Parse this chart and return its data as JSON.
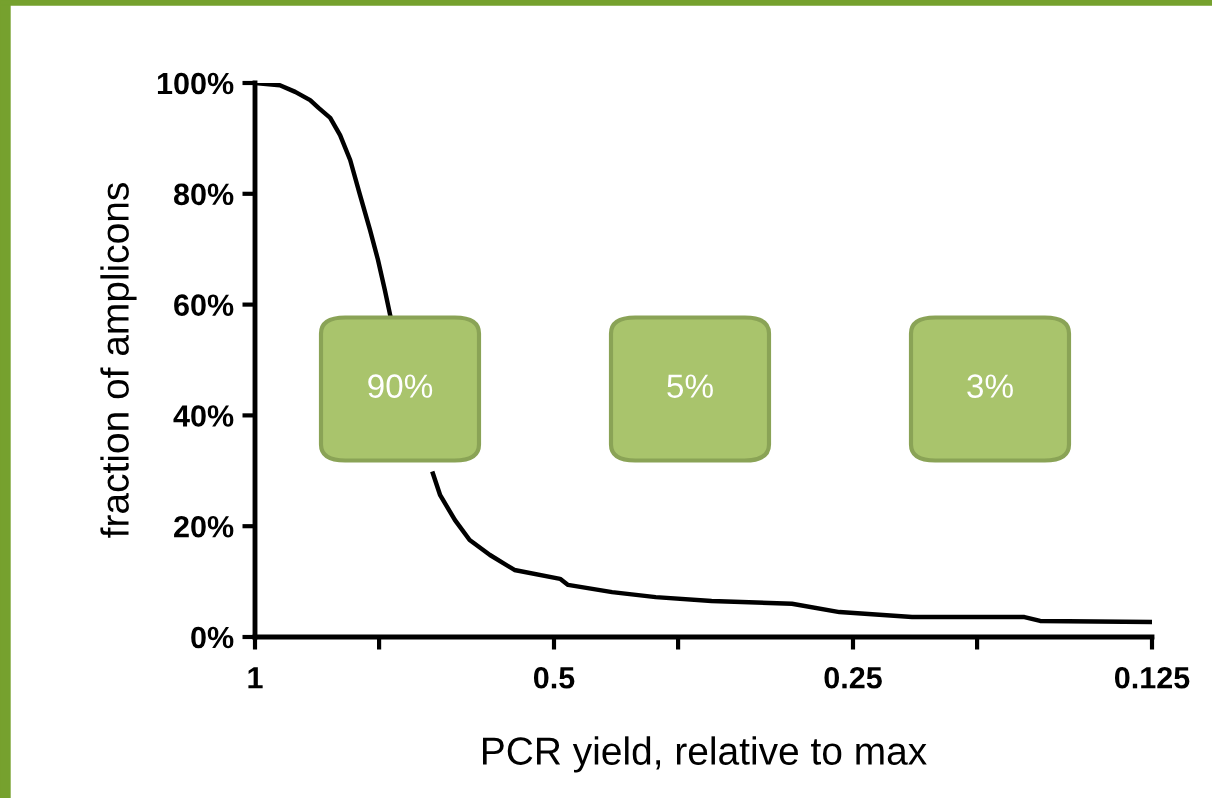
{
  "chart_data": {
    "type": "line",
    "xlabel": "PCR yield, relative to max",
    "ylabel": "fraction of amplicons",
    "x": [
      1,
      0.944,
      0.911,
      0.88,
      0.863,
      0.84,
      0.821,
      0.802,
      0.784,
      0.766,
      0.752,
      0.74,
      0.731,
      0.7,
      0.662,
      0.651,
      0.629,
      0.608,
      0.58,
      0.548,
      0.493,
      0.484,
      0.437,
      0.395,
      0.347,
      0.288,
      0.258,
      0.218,
      0.168,
      0.162,
      0.125
    ],
    "series": [
      {
        "color": "#000000",
        "values": [
          100,
          99.6,
          98.4,
          96.9,
          95.5,
          93.7,
          90.6,
          86.1,
          79.8,
          73.5,
          68.1,
          62.6,
          58.1,
          null,
          29.5,
          25.6,
          21.1,
          17.5,
          14.8,
          12.1,
          10.5,
          9.4,
          8.1,
          7.2,
          6.5,
          6.0,
          4.5,
          3.6,
          3.6,
          2.9,
          2.7
        ]
      }
    ],
    "log": "x",
    "xlim": [
      1,
      0.125
    ],
    "xticks": [
      1,
      {
        "value": 0.75,
        "label": null
      },
      0.5,
      {
        "value": 0.375,
        "label": null
      },
      0.25,
      {
        "value": 0.1875,
        "label": null
      },
      0.125
    ],
    "ylim": [
      0,
      100
    ],
    "yticks": [
      {
        "value": 0,
        "label": "0%"
      },
      {
        "value": 20,
        "label": "20%"
      },
      {
        "value": 40,
        "label": "40%"
      },
      {
        "value": 60,
        "label": "60%"
      },
      {
        "value": 80,
        "label": "80%"
      },
      {
        "value": 100,
        "label": "100%"
      }
    ],
    "annotations": [
      "90%",
      "5%",
      "3%"
    ],
    "grid": false,
    "legend": false,
    "marker": "none",
    "line_style": "solid"
  }
}
